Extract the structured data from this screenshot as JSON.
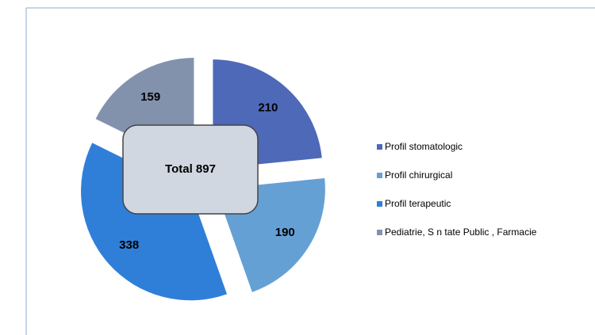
{
  "chart_data": {
    "type": "pie",
    "center_label": "Total 897",
    "categories": [
      "Profil stomatologic",
      "Profil chirurgical",
      "Profil terapeutic",
      "Pediatrie, S n tate Public , Farmacie"
    ],
    "values": [
      210,
      190,
      338,
      159
    ],
    "colors": [
      "#4d69b8",
      "#65a0d4",
      "#2f7fd8",
      "#8292ad"
    ],
    "legend": "right"
  }
}
